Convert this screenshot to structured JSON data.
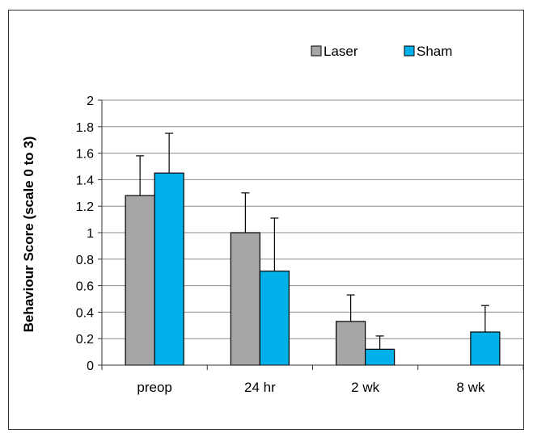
{
  "chart_data": {
    "type": "bar",
    "ylabel": "Behaviour Score (scale 0 to 3)",
    "xlabel": "",
    "title": "",
    "categories": [
      "preop",
      "24 hr",
      "2 wk",
      "8 wk"
    ],
    "ylim": [
      0,
      2
    ],
    "yticks": [
      "0",
      "0.2",
      "0.4",
      "0.6",
      "0.8",
      "1",
      "1.2",
      "1.4",
      "1.6",
      "1.8",
      "2"
    ],
    "grid": true,
    "legend_position": "top-right",
    "series": [
      {
        "name": "Laser",
        "color": "#a6a6a9",
        "values": [
          1.28,
          1.0,
          0.33,
          0
        ],
        "errors": [
          0.3,
          0.3,
          0.2,
          0
        ]
      },
      {
        "name": "Sham",
        "color": "#00b0e8",
        "values": [
          1.45,
          0.71,
          0.12,
          0.25
        ],
        "errors": [
          0.3,
          0.4,
          0.1,
          0.2
        ]
      }
    ]
  }
}
